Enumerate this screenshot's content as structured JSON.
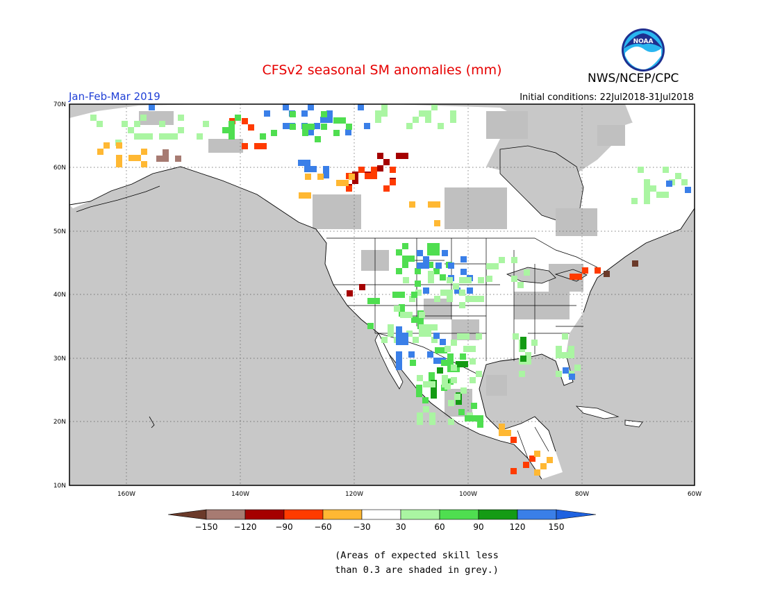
{
  "header": {
    "title": "CFSv2 seasonal SM anomalies (mm)",
    "agency": "NWS/NCEP/CPC",
    "period": "Jan-Feb-Mar 2019",
    "initial_conditions": "Initial conditions: 22Jul2018-31Jul2018",
    "logo_text": "NOAA"
  },
  "map": {
    "lon_labels": [
      "160W",
      "140W",
      "120W",
      "100W",
      "80W",
      "60W"
    ],
    "lat_labels": [
      "70N",
      "60N",
      "50N",
      "40N",
      "30N",
      "20N",
      "10N"
    ],
    "lon_range": [
      -170,
      -60
    ],
    "lat_range": [
      10,
      70
    ],
    "ocean_color": "#c8c8c8",
    "skill_mask_color": "#c0c0c0"
  },
  "colorbar": {
    "tick_labels": [
      "-150",
      "-120",
      "-90",
      "-60",
      "-30",
      "30",
      "60",
      "90",
      "120",
      "150"
    ],
    "colors": [
      "#6b3a2a",
      "#a77b72",
      "#a50000",
      "#ff3b00",
      "#ffb833",
      "#ffffff",
      "#aaf5a2",
      "#4fde50",
      "#149b14",
      "#3a7fe8",
      "#1f62e0"
    ]
  },
  "footnote": {
    "line1": "(Areas of expected skill less",
    "line2": "than 0.3 are shaded in grey.)"
  }
}
